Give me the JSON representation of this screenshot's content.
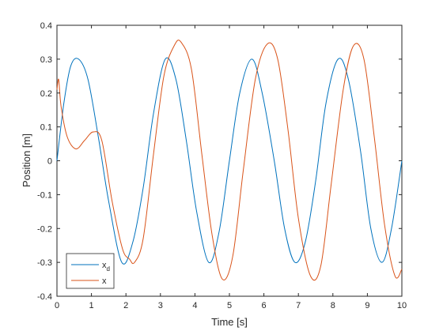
{
  "chart_data": {
    "type": "line",
    "xlabel": "Time [s]",
    "ylabel": "Position [m]",
    "xlim": [
      0,
      10
    ],
    "ylim": [
      -0.4,
      0.4
    ],
    "xticks": [
      "0",
      "1",
      "2",
      "3",
      "4",
      "5",
      "6",
      "7",
      "8",
      "9",
      "10"
    ],
    "yticks": [
      "-0.4",
      "-0.3",
      "-0.2",
      "-0.1",
      "0",
      "0.1",
      "0.2",
      "0.3",
      "0.4"
    ],
    "grid": false,
    "legend_location": "bottom-left",
    "series": [
      {
        "name": "x_d",
        "legend_base": "x",
        "legend_sub": "d",
        "color": "#0072BD",
        "x": [
          0,
          0.2,
          0.4,
          0.63,
          0.9,
          1.2,
          1.5,
          1.88,
          2.2,
          2.5,
          2.8,
          3.14,
          3.45,
          3.75,
          4.05,
          4.4,
          4.7,
          5.0,
          5.3,
          5.65,
          5.95,
          6.3,
          6.6,
          6.9,
          7.2,
          7.5,
          7.8,
          8.15,
          8.45,
          8.8,
          9.1,
          9.42,
          9.7,
          10
        ],
        "y": [
          0.0,
          0.17,
          0.28,
          0.3,
          0.24,
          0.07,
          -0.12,
          -0.3,
          -0.24,
          -0.08,
          0.14,
          0.3,
          0.24,
          0.06,
          -0.15,
          -0.3,
          -0.21,
          0.0,
          0.2,
          0.3,
          0.2,
          0.0,
          -0.2,
          -0.3,
          -0.24,
          -0.06,
          0.17,
          0.3,
          0.24,
          0.03,
          -0.2,
          -0.3,
          -0.2,
          0.0
        ]
      },
      {
        "name": "x",
        "legend_base": "x",
        "legend_sub": "",
        "color": "#D95319",
        "x": [
          0,
          0.05,
          0.12,
          0.3,
          0.55,
          0.8,
          1.05,
          1.3,
          1.6,
          1.9,
          2.1,
          2.25,
          2.5,
          2.8,
          3.1,
          3.4,
          3.6,
          3.9,
          4.2,
          4.5,
          4.8,
          5.1,
          5.4,
          5.75,
          6.1,
          6.4,
          6.7,
          7.0,
          7.35,
          7.65,
          7.95,
          8.3,
          8.6,
          8.9,
          9.2,
          9.5,
          9.8,
          10
        ],
        "y": [
          0.21,
          0.24,
          0.16,
          0.07,
          0.035,
          0.06,
          0.085,
          0.06,
          -0.12,
          -0.26,
          -0.29,
          -0.3,
          -0.23,
          0.02,
          0.25,
          0.34,
          0.35,
          0.27,
          0.02,
          -0.22,
          -0.35,
          -0.28,
          -0.03,
          0.24,
          0.345,
          0.3,
          0.09,
          -0.17,
          -0.34,
          -0.31,
          -0.07,
          0.21,
          0.34,
          0.3,
          0.07,
          -0.19,
          -0.34,
          -0.32
        ]
      }
    ]
  }
}
